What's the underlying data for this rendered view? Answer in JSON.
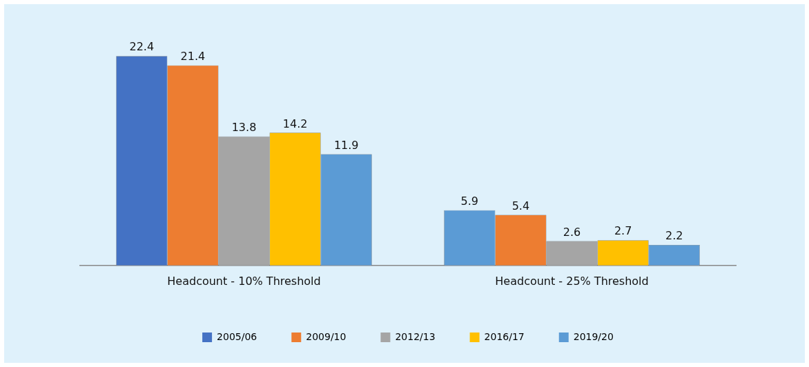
{
  "chart_data": {
    "type": "bar",
    "categories": [
      "Headcount - 10% Threshold",
      "Headcount - 25% Threshold"
    ],
    "series": [
      {
        "name": "2005/06",
        "color": "#4472c4",
        "colors": [
          "#4472c4",
          "#5b9bd5"
        ],
        "values": [
          22.4,
          5.9
        ]
      },
      {
        "name": "2009/10",
        "color": "#ed7d31",
        "values": [
          21.4,
          5.4
        ]
      },
      {
        "name": "2012/13",
        "color": "#a5a5a5",
        "values": [
          13.8,
          2.6
        ]
      },
      {
        "name": "2016/17",
        "color": "#ffc000",
        "values": [
          14.2,
          2.7
        ]
      },
      {
        "name": "2019/20",
        "color": "#5b9bd5",
        "values": [
          11.9,
          2.2
        ]
      }
    ],
    "data_labels": true,
    "legend": "bottom"
  }
}
